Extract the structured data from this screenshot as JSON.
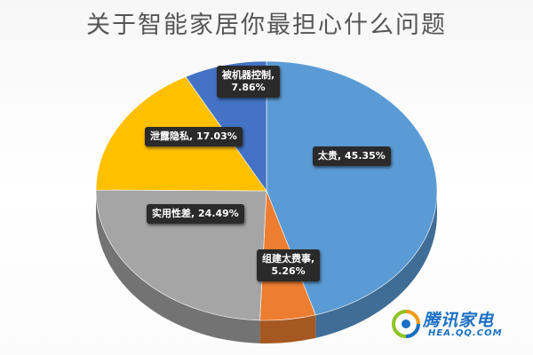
{
  "chart_data": {
    "type": "pie",
    "title": "关于智能家居你最担心什么问题",
    "categories": [
      "太贵",
      "组建太费事",
      "实用性差",
      "泄露隐私",
      "被机器控制"
    ],
    "values": [
      45.35,
      5.26,
      24.49,
      17.03,
      7.86
    ],
    "unit": "%",
    "labels": [
      {
        "name": "太贵",
        "value": "45.35%"
      },
      {
        "name": "组建太费事",
        "value": "5.26%"
      },
      {
        "name": "实用性差",
        "value": "24.49%"
      },
      {
        "name": "泄露隐私",
        "value": "17.03%"
      },
      {
        "name": "被机器控制",
        "value": "7.86%"
      }
    ],
    "colors": [
      "#5b9bd5",
      "#ed7d31",
      "#a5a5a5",
      "#ffc000",
      "#4472c4"
    ],
    "legend": "none",
    "style": "3d"
  },
  "watermark": {
    "text": "腾讯家电",
    "subtext": "HEA.QQ.COM"
  }
}
